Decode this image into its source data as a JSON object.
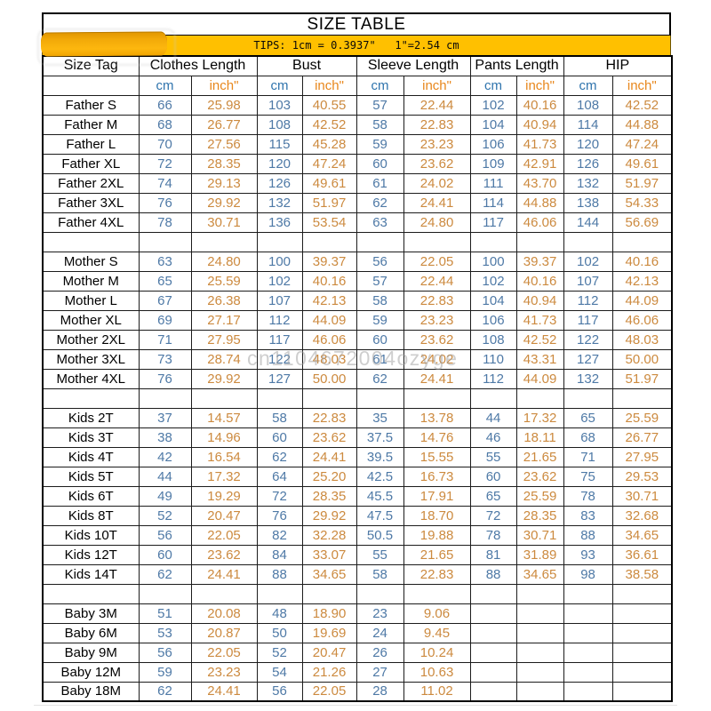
{
  "title": "SIZE TABLE",
  "tips": "TIPS: 1cm = 0.3937\"   1\"=2.54 cm",
  "watermark": "cn1104672004ozyge",
  "colors": {
    "tips_bar_bg": "#ffc000",
    "sticker_blob": "#f2a908",
    "cm_header_text": "#2f74ad",
    "inch_header_text": "#e8871c",
    "cm_value_text": "#4e79a6",
    "inch_value_text": "#cc8a3f"
  },
  "table": {
    "corner_header": "Size Tag",
    "groups": [
      "Clothes Length",
      "Bust",
      "Sleeve Length",
      "Pants Length",
      "HIP"
    ],
    "unit_headers": {
      "cm": "cm",
      "inch": "inch\""
    },
    "rows": [
      {
        "label": "Father S",
        "values": [
          "66",
          "25.98",
          "103",
          "40.55",
          "57",
          "22.44",
          "102",
          "40.16",
          "108",
          "42.52"
        ]
      },
      {
        "label": "Father M",
        "values": [
          "68",
          "26.77",
          "108",
          "42.52",
          "58",
          "22.83",
          "104",
          "40.94",
          "114",
          "44.88"
        ]
      },
      {
        "label": "Father L",
        "values": [
          "70",
          "27.56",
          "115",
          "45.28",
          "59",
          "23.23",
          "106",
          "41.73",
          "120",
          "47.24"
        ]
      },
      {
        "label": "Father XL",
        "values": [
          "72",
          "28.35",
          "120",
          "47.24",
          "60",
          "23.62",
          "109",
          "42.91",
          "126",
          "49.61"
        ]
      },
      {
        "label": "Father 2XL",
        "values": [
          "74",
          "29.13",
          "126",
          "49.61",
          "61",
          "24.02",
          "111",
          "43.70",
          "132",
          "51.97"
        ]
      },
      {
        "label": "Father 3XL",
        "values": [
          "76",
          "29.92",
          "132",
          "51.97",
          "62",
          "24.41",
          "114",
          "44.88",
          "138",
          "54.33"
        ]
      },
      {
        "label": "Father 4XL",
        "values": [
          "78",
          "30.71",
          "136",
          "53.54",
          "63",
          "24.80",
          "117",
          "46.06",
          "144",
          "56.69"
        ]
      },
      {
        "spacer": true,
        "label": "",
        "values": [
          "",
          "",
          "",
          "",
          "",
          "",
          "",
          "",
          "",
          ""
        ]
      },
      {
        "label": "Mother S",
        "values": [
          "63",
          "24.80",
          "100",
          "39.37",
          "56",
          "22.05",
          "100",
          "39.37",
          "102",
          "40.16"
        ]
      },
      {
        "label": "Mother M",
        "values": [
          "65",
          "25.59",
          "102",
          "40.16",
          "57",
          "22.44",
          "102",
          "40.16",
          "107",
          "42.13"
        ]
      },
      {
        "label": "Mother L",
        "values": [
          "67",
          "26.38",
          "107",
          "42.13",
          "58",
          "22.83",
          "104",
          "40.94",
          "112",
          "44.09"
        ]
      },
      {
        "label": "Mother XL",
        "values": [
          "69",
          "27.17",
          "112",
          "44.09",
          "59",
          "23.23",
          "106",
          "41.73",
          "117",
          "46.06"
        ]
      },
      {
        "label": "Mother 2XL",
        "values": [
          "71",
          "27.95",
          "117",
          "46.06",
          "60",
          "23.62",
          "108",
          "42.52",
          "122",
          "48.03"
        ]
      },
      {
        "label": "Mother 3XL",
        "values": [
          "73",
          "28.74",
          "122",
          "48.03",
          "61",
          "24.02",
          "110",
          "43.31",
          "127",
          "50.00"
        ]
      },
      {
        "label": "Mother 4XL",
        "values": [
          "76",
          "29.92",
          "127",
          "50.00",
          "62",
          "24.41",
          "112",
          "44.09",
          "132",
          "51.97"
        ]
      },
      {
        "spacer": true,
        "label": "",
        "values": [
          "",
          "",
          "",
          "",
          "",
          "",
          "",
          "",
          "",
          ""
        ]
      },
      {
        "label": "Kids 2T",
        "values": [
          "37",
          "14.57",
          "58",
          "22.83",
          "35",
          "13.78",
          "44",
          "17.32",
          "65",
          "25.59"
        ]
      },
      {
        "label": "Kids 3T",
        "values": [
          "38",
          "14.96",
          "60",
          "23.62",
          "37.5",
          "14.76",
          "46",
          "18.11",
          "68",
          "26.77"
        ]
      },
      {
        "label": "Kids 4T",
        "values": [
          "42",
          "16.54",
          "62",
          "24.41",
          "39.5",
          "15.55",
          "55",
          "21.65",
          "71",
          "27.95"
        ]
      },
      {
        "label": "Kids 5T",
        "values": [
          "44",
          "17.32",
          "64",
          "25.20",
          "42.5",
          "16.73",
          "60",
          "23.62",
          "75",
          "29.53"
        ]
      },
      {
        "label": "Kids 6T",
        "values": [
          "49",
          "19.29",
          "72",
          "28.35",
          "45.5",
          "17.91",
          "65",
          "25.59",
          "78",
          "30.71"
        ]
      },
      {
        "label": "Kids 8T",
        "values": [
          "52",
          "20.47",
          "76",
          "29.92",
          "47.5",
          "18.70",
          "72",
          "28.35",
          "83",
          "32.68"
        ]
      },
      {
        "label": "Kids 10T",
        "values": [
          "56",
          "22.05",
          "82",
          "32.28",
          "50.5",
          "19.88",
          "78",
          "30.71",
          "88",
          "34.65"
        ]
      },
      {
        "label": "Kids 12T",
        "values": [
          "60",
          "23.62",
          "84",
          "33.07",
          "55",
          "21.65",
          "81",
          "31.89",
          "93",
          "36.61"
        ]
      },
      {
        "label": "Kids 14T",
        "values": [
          "62",
          "24.41",
          "88",
          "34.65",
          "58",
          "22.83",
          "88",
          "34.65",
          "98",
          "38.58"
        ]
      },
      {
        "spacer": true,
        "label": "",
        "values": [
          "",
          "",
          "",
          "",
          "",
          "",
          "",
          "",
          "",
          ""
        ]
      },
      {
        "label": "Baby 3M",
        "values": [
          "51",
          "20.08",
          "48",
          "18.90",
          "23",
          "9.06",
          "",
          "",
          "",
          ""
        ]
      },
      {
        "label": "Baby 6M",
        "values": [
          "53",
          "20.87",
          "50",
          "19.69",
          "24",
          "9.45",
          "",
          "",
          "",
          ""
        ]
      },
      {
        "label": "Baby 9M",
        "values": [
          "56",
          "22.05",
          "52",
          "20.47",
          "26",
          "10.24",
          "",
          "",
          "",
          ""
        ]
      },
      {
        "label": "Baby 12M",
        "values": [
          "59",
          "23.23",
          "54",
          "21.26",
          "27",
          "10.63",
          "",
          "",
          "",
          ""
        ]
      },
      {
        "label": "Baby 18M",
        "values": [
          "62",
          "24.41",
          "56",
          "22.05",
          "28",
          "11.02",
          "",
          "",
          "",
          ""
        ]
      }
    ]
  }
}
